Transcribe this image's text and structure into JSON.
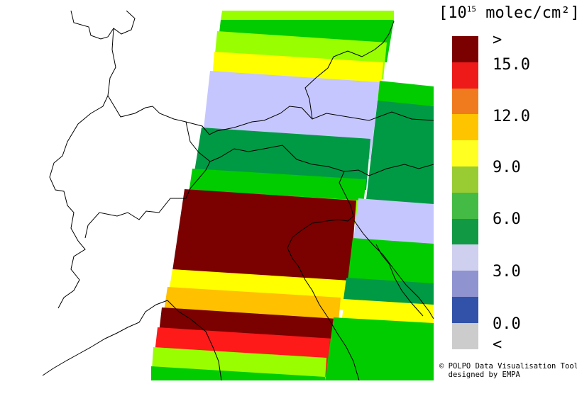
{
  "legend": {
    "unit_prefix": "[10",
    "unit_exp": "15",
    "unit_suffix": " molec/cm²]",
    "colors": [
      "#7b0000",
      "#ee1a1a",
      "#f07b1f",
      "#ffc400",
      "#ffff22",
      "#99cc33",
      "#44bb44",
      "#119944",
      "#cfcfef",
      "#8f93cf",
      "#3152a8",
      "#cccccc"
    ],
    "ticks": [
      ">",
      "15.0",
      "12.0",
      "9.0",
      "6.0",
      "3.0",
      "0.0",
      "<"
    ]
  },
  "credit": {
    "line1": "© POLPO Data Visualisation Tool",
    "line2": "  designed by EMPA"
  }
}
